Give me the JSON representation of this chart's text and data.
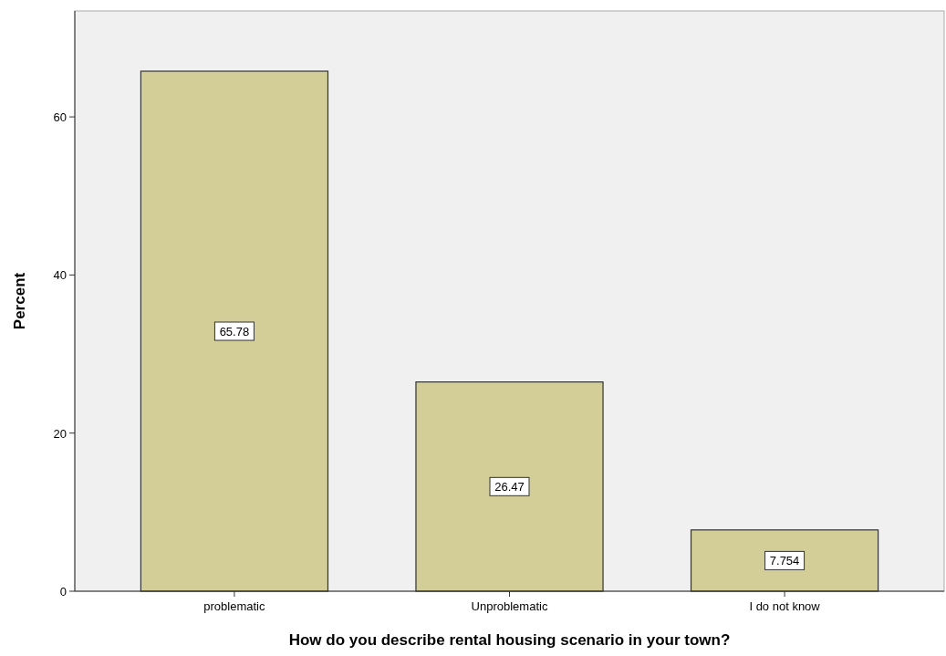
{
  "chart_data": {
    "type": "bar",
    "xlabel": "How do you describe rental housing scenario in your town?",
    "ylabel": "Percent",
    "categories": [
      "problematic",
      "Unproblematic",
      "I do not know"
    ],
    "values": [
      65.78,
      26.47,
      7.754
    ],
    "color": "#d3ce97",
    "ylim": [
      0,
      73.4
    ],
    "yticks": [
      0,
      20,
      40,
      60
    ],
    "grid": false,
    "data_labels": true
  }
}
